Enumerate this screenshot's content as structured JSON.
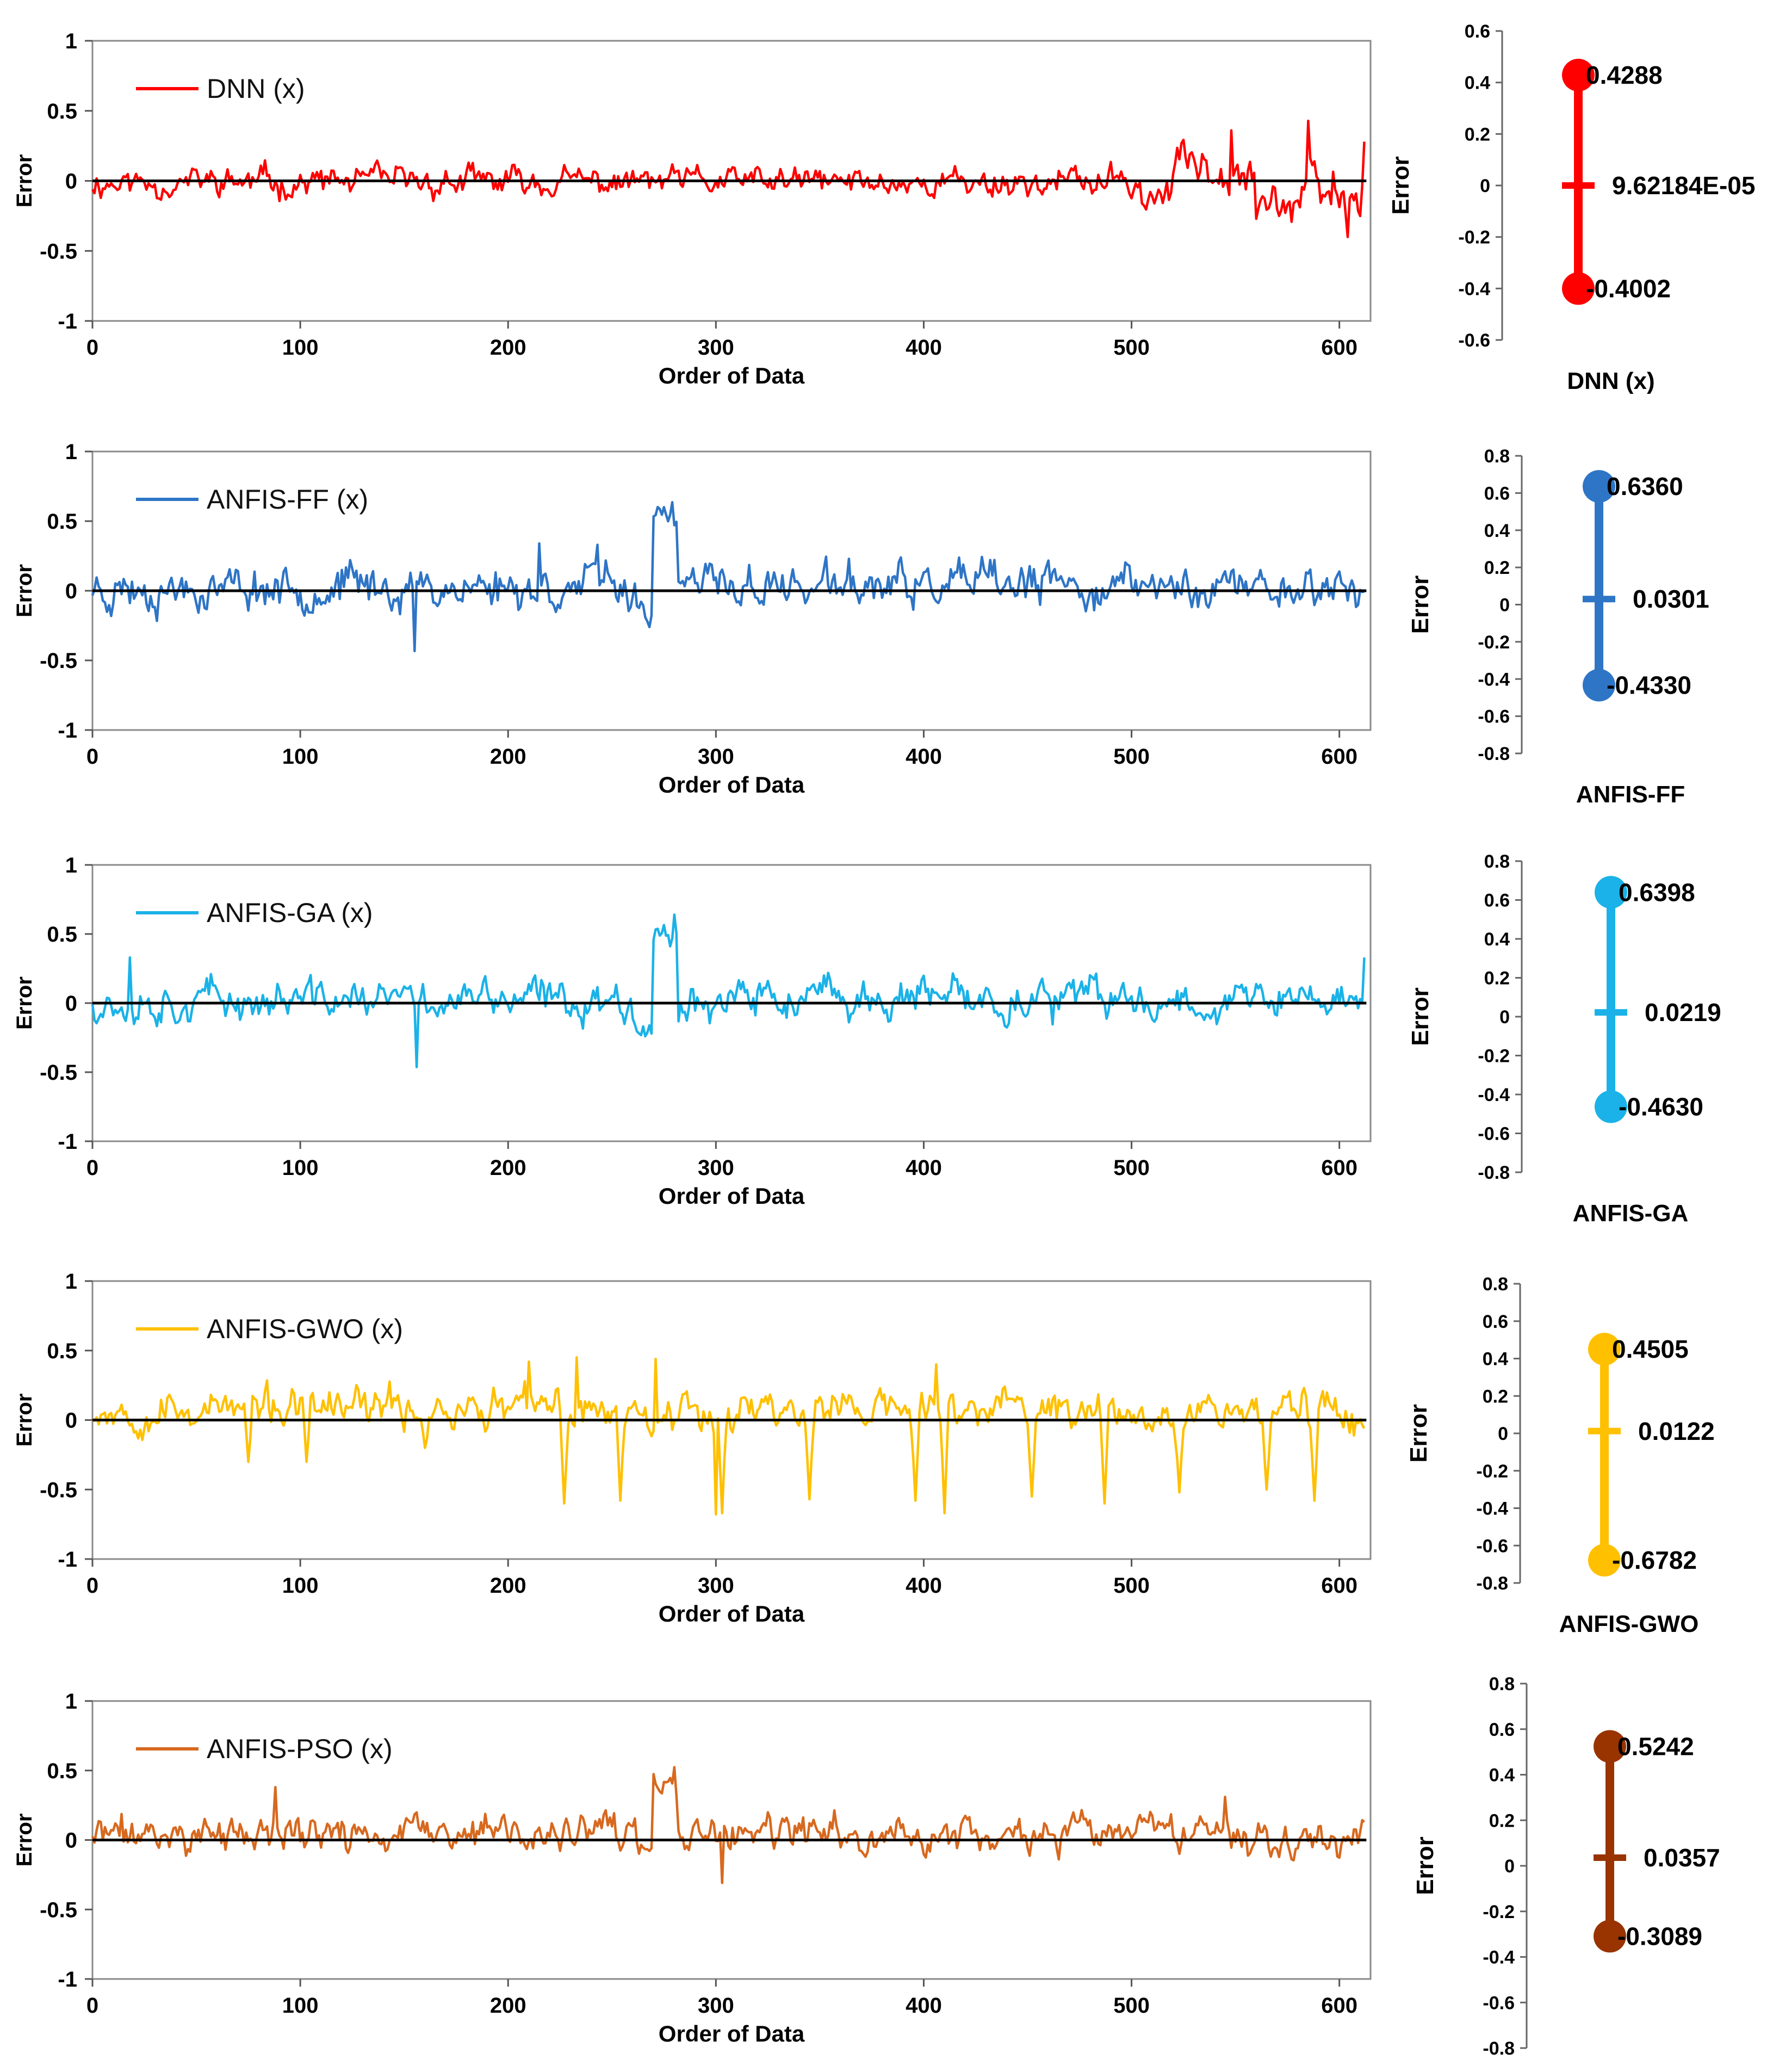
{
  "chart_data": [
    {
      "type": "line",
      "id": "dnn",
      "legend": "DNN (x)",
      "color": "#ff0000",
      "xlabel": "Order of Data",
      "ylabel": "Error",
      "xlim": [
        0,
        615
      ],
      "ylim": [
        -1,
        1
      ],
      "xticks": [
        "0",
        "100",
        "200",
        "300",
        "400",
        "500",
        "600"
      ],
      "yticks": [
        "1",
        "0.5",
        "0",
        "-0.5",
        "-1"
      ],
      "n_points": 613,
      "seed": 11,
      "segments": [
        {
          "from": 0,
          "to": 505,
          "amp": 0.095,
          "offset": -0.01
        },
        {
          "from": 505,
          "to": 520,
          "amp": 0.12,
          "offset": -0.12
        },
        {
          "from": 520,
          "to": 560,
          "amp": 0.14,
          "offset": 0.13
        },
        {
          "from": 560,
          "to": 580,
          "amp": 0.14,
          "offset": -0.16
        },
        {
          "from": 580,
          "to": 613,
          "amp": 0.17,
          "offset": -0.1
        }
      ],
      "spikes": [
        {
          "x": 585,
          "y": 0.4288
        },
        {
          "x": 604,
          "y": -0.4002
        },
        {
          "x": 548,
          "y": 0.36
        },
        {
          "x": 612,
          "y": 0.28
        }
      ],
      "summary": {
        "label": "DNN (x)",
        "ylim": [
          -0.6,
          0.6
        ],
        "yticks": [
          "0.6",
          "0.4",
          "0.2",
          "0",
          "-0.2",
          "-0.4",
          "-0.6"
        ],
        "max": 0.4288,
        "mean": 9.62184e-05,
        "min": -0.4002,
        "max_label": "0.4288",
        "mean_label": "9.62184E-05",
        "min_label": "-0.4002"
      }
    },
    {
      "type": "line",
      "id": "anfis-ff",
      "legend": "ANFIS-FF (x)",
      "color": "#2e75c6",
      "xlabel": "Order of Data",
      "ylabel": "Error",
      "xlim": [
        0,
        615
      ],
      "ylim": [
        -1,
        1
      ],
      "xticks": [
        "0",
        "100",
        "200",
        "300",
        "400",
        "500",
        "600"
      ],
      "yticks": [
        "1",
        "0.5",
        "0",
        "-0.5",
        "-1"
      ],
      "n_points": 613,
      "seed": 23,
      "segments": [
        {
          "from": 0,
          "to": 262,
          "amp": 0.14,
          "offset": 0.03
        },
        {
          "from": 262,
          "to": 270,
          "amp": 0.1,
          "offset": -0.12
        },
        {
          "from": 270,
          "to": 282,
          "amp": 0.08,
          "offset": 0.5
        },
        {
          "from": 282,
          "to": 613,
          "amp": 0.14,
          "offset": 0.03
        }
      ],
      "spikes": [
        {
          "x": 279,
          "y": 0.636
        },
        {
          "x": 155,
          "y": -0.433
        },
        {
          "x": 243,
          "y": 0.33
        },
        {
          "x": 215,
          "y": 0.34
        }
      ],
      "summary": {
        "label": "ANFIS-FF",
        "ylim": [
          -0.8,
          0.8
        ],
        "yticks": [
          "0.8",
          "0.6",
          "0.4",
          "0.2",
          "0",
          "-0.2",
          "-0.4",
          "-0.6",
          "-0.8"
        ],
        "max": 0.636,
        "mean": 0.0301,
        "min": -0.433,
        "max_label": "0.6360",
        "mean_label": "0.0301",
        "min_label": "-0.4330"
      }
    },
    {
      "type": "line",
      "id": "anfis-ga",
      "legend": "ANFIS-GA (x)",
      "color": "#1ab2e8",
      "xlabel": "Order of Data",
      "ylabel": "Error",
      "xlim": [
        0,
        615
      ],
      "ylim": [
        -1,
        1
      ],
      "xticks": [
        "0",
        "100",
        "200",
        "300",
        "400",
        "500",
        "600"
      ],
      "yticks": [
        "1",
        "0.5",
        "0",
        "-0.5",
        "-1"
      ],
      "n_points": 613,
      "seed": 37,
      "segments": [
        {
          "from": 0,
          "to": 262,
          "amp": 0.13,
          "offset": 0.02
        },
        {
          "from": 262,
          "to": 270,
          "amp": 0.1,
          "offset": -0.14
        },
        {
          "from": 270,
          "to": 282,
          "amp": 0.08,
          "offset": 0.5
        },
        {
          "from": 282,
          "to": 613,
          "amp": 0.13,
          "offset": 0.02
        }
      ],
      "spikes": [
        {
          "x": 280,
          "y": 0.6398
        },
        {
          "x": 156,
          "y": -0.463
        },
        {
          "x": 18,
          "y": 0.33
        },
        {
          "x": 612,
          "y": 0.33
        }
      ],
      "summary": {
        "label": "ANFIS-GA",
        "ylim": [
          -0.8,
          0.8
        ],
        "yticks": [
          "0.8",
          "0.6",
          "0.4",
          "0.2",
          "0",
          "-0.2",
          "-0.4",
          "-0.6",
          "-0.8"
        ],
        "max": 0.6398,
        "mean": 0.0219,
        "min": -0.463,
        "max_label": "0.6398",
        "mean_label": "0.0219",
        "min_label": "-0.4630"
      }
    },
    {
      "type": "line",
      "id": "anfis-gwo",
      "legend": "ANFIS-GWO (x)",
      "color": "#ffc000",
      "xlabel": "Order of Data",
      "ylabel": "Error",
      "xlim": [
        0,
        615
      ],
      "ylim": [
        -1,
        1
      ],
      "xticks": [
        "0",
        "100",
        "200",
        "300",
        "400",
        "500",
        "600"
      ],
      "yticks": [
        "1",
        "0.5",
        "0",
        "-0.5",
        "-1"
      ],
      "n_points": 613,
      "seed": 53,
      "segments": [
        {
          "from": 0,
          "to": 613,
          "amp": 0.13,
          "offset": 0.08
        }
      ],
      "dips": [
        {
          "x": 75,
          "y": -0.3
        },
        {
          "x": 103,
          "y": -0.3
        },
        {
          "x": 227,
          "y": -0.6
        },
        {
          "x": 254,
          "y": -0.58
        },
        {
          "x": 303,
          "y": -0.67
        },
        {
          "x": 345,
          "y": -0.57
        },
        {
          "x": 396,
          "y": -0.58
        },
        {
          "x": 410,
          "y": -0.67
        },
        {
          "x": 452,
          "y": -0.55
        },
        {
          "x": 487,
          "y": -0.6
        },
        {
          "x": 523,
          "y": -0.52
        },
        {
          "x": 565,
          "y": -0.5
        },
        {
          "x": 588,
          "y": -0.58
        },
        {
          "x": 160,
          "y": -0.2
        }
      ],
      "spikes": [
        {
          "x": 233,
          "y": 0.4505
        },
        {
          "x": 271,
          "y": 0.44
        },
        {
          "x": 406,
          "y": 0.4
        },
        {
          "x": 210,
          "y": 0.42
        },
        {
          "x": 300,
          "y": -0.6782
        }
      ],
      "summary": {
        "label": "ANFIS-GWO",
        "ylim": [
          -0.8,
          0.8
        ],
        "yticks": [
          "0.8",
          "0.6",
          "0.4",
          "0.2",
          "0",
          "-0.2",
          "-0.4",
          "-0.6",
          "-0.8"
        ],
        "max": 0.4505,
        "mean": 0.0122,
        "min": -0.6782,
        "max_label": "0.4505",
        "mean_label": "0.0122",
        "min_label": "-0.6782"
      }
    },
    {
      "type": "line",
      "id": "anfis-pso",
      "legend": "ANFIS-PSO (x)",
      "color": "#d7691f",
      "xlabel": "Order of Data",
      "ylabel": "Error",
      "xlim": [
        0,
        615
      ],
      "ylim": [
        -1,
        1
      ],
      "xticks": [
        "0",
        "100",
        "200",
        "300",
        "400",
        "500",
        "600"
      ],
      "yticks": [
        "1",
        "0.5",
        "0",
        "-0.5",
        "-1"
      ],
      "n_points": 613,
      "seed": 71,
      "segments": [
        {
          "from": 0,
          "to": 262,
          "amp": 0.12,
          "offset": 0.04
        },
        {
          "from": 262,
          "to": 270,
          "amp": 0.1,
          "offset": -0.12
        },
        {
          "from": 270,
          "to": 282,
          "amp": 0.08,
          "offset": 0.38
        },
        {
          "from": 282,
          "to": 613,
          "amp": 0.12,
          "offset": 0.03
        }
      ],
      "spikes": [
        {
          "x": 280,
          "y": 0.5242
        },
        {
          "x": 88,
          "y": 0.38
        },
        {
          "x": 303,
          "y": -0.3089
        },
        {
          "x": 545,
          "y": 0.31
        }
      ],
      "summary": {
        "label": "ANFIS-PSO",
        "ylim": [
          -0.8,
          0.8
        ],
        "yticks": [
          "0.8",
          "0.6",
          "0.4",
          "0.2",
          "0",
          "-0.2",
          "-0.4",
          "-0.6",
          "-0.8"
        ],
        "max": 0.5242,
        "mean": 0.0357,
        "min": -0.3089,
        "max_label": "0.5242",
        "mean_label": "0.0357",
        "min_label": "-0.3089"
      },
      "summary_color": "#993300"
    }
  ]
}
